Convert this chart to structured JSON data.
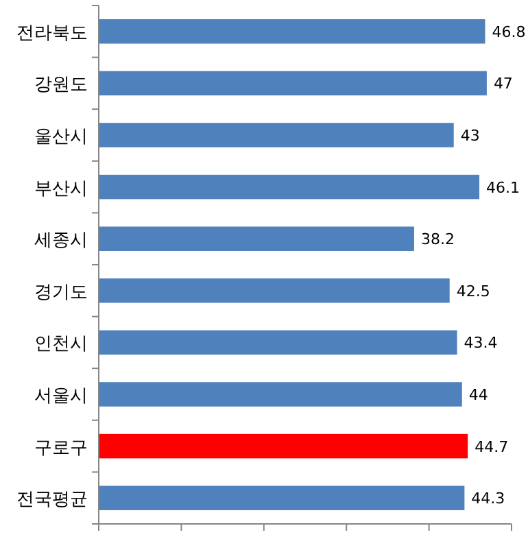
{
  "chart_data": {
    "type": "bar",
    "orientation": "horizontal",
    "categories": [
      "전라북도",
      "강원도",
      "울산시",
      "부산시",
      "세종시",
      "경기도",
      "인천시",
      "서울시",
      "구로구",
      "전국평균"
    ],
    "values": [
      46.8,
      47,
      43,
      46.1,
      38.2,
      42.5,
      43.4,
      44,
      44.7,
      44.3
    ],
    "colors": [
      "#4f81bd",
      "#4f81bd",
      "#4f81bd",
      "#4f81bd",
      "#4f81bd",
      "#4f81bd",
      "#4f81bd",
      "#4f81bd",
      "#ff0000",
      "#4f81bd"
    ],
    "xlim": [
      0,
      50
    ],
    "xticks": [
      {
        "value": 0,
        "label": null
      },
      {
        "value": 10,
        "label": null
      },
      {
        "value": 20,
        "label": null
      },
      {
        "value": 30,
        "label": null
      },
      {
        "value": 40,
        "label": null
      },
      {
        "value": 50,
        "label": null
      }
    ],
    "tick_labels": "y",
    "data_labels": true
  }
}
